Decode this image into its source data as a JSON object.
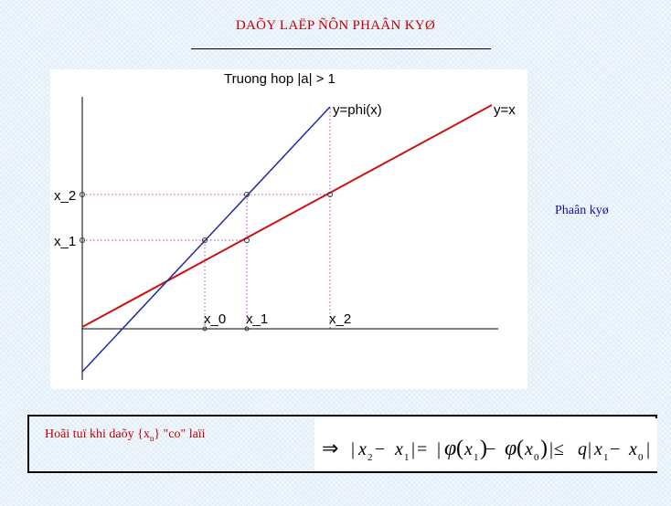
{
  "header": {
    "title": "DAÕY LAËP ÑÔN PHAÂN KYØ"
  },
  "figure": {
    "title": "Truong hop |a| > 1",
    "line_labels": {
      "identity": "y=x",
      "phi": "y=phi(x)"
    },
    "x_labels": [
      "x_0",
      "x_1",
      "x_2"
    ],
    "y_labels": [
      "x_1",
      "x_2"
    ],
    "colors": {
      "identity": "#cc1111",
      "phi": "#1f2ba6",
      "guides": "#c040c0",
      "axes": "#000000"
    }
  },
  "side_label": "Phaân kyø",
  "bottom": {
    "text_prefix": "Hoãi tuï khi daõy {x",
    "text_sub": "n",
    "text_suffix": "} \"co\" laïi",
    "formula": {
      "implies": "⇒",
      "parts": [
        "|",
        "x",
        "2",
        " − ",
        "x",
        "1",
        "|",
        " = ",
        "|",
        "φ",
        "(",
        "x",
        "1",
        ")",
        " − ",
        "φ",
        "(",
        "x",
        "0",
        ")",
        "|",
        " ≤ ",
        "q",
        "|",
        "x",
        "1",
        " − ",
        "x",
        "0",
        "|"
      ]
    }
  }
}
